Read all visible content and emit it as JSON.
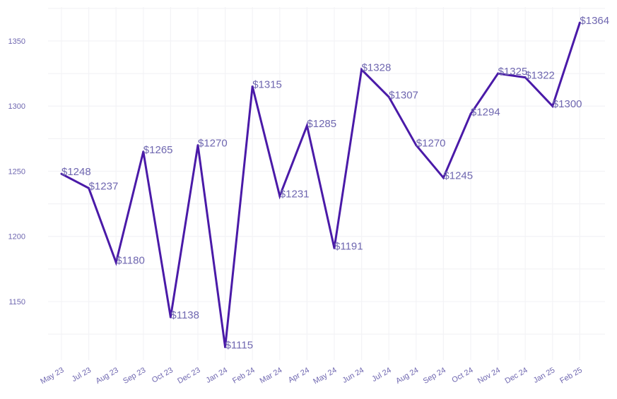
{
  "chart_data": {
    "type": "line",
    "title": "",
    "xlabel": "",
    "ylabel": "",
    "categories": [
      "May 23",
      "Jul 23",
      "Aug 23",
      "Sep 23",
      "Oct 23",
      "Dec 23",
      "Jan 24",
      "Feb 24",
      "Mar 24",
      "Apr 24",
      "May 24",
      "Jun 24",
      "Jul 24",
      "Aug 24",
      "Sep 24",
      "Oct 24",
      "Nov 24",
      "Dec 24",
      "Jan 25",
      "Feb 25"
    ],
    "values": [
      1248,
      1237,
      1180,
      1265,
      1138,
      1270,
      1115,
      1315,
      1231,
      1285,
      1191,
      1328,
      1307,
      1270,
      1245,
      1294,
      1325,
      1322,
      1300,
      1364
    ],
    "data_labels": [
      "$1248",
      "$1237",
      "$1180",
      "$1265",
      "$1138",
      "$1270",
      "$1115",
      "$1315",
      "$1231",
      "$1285",
      "$1191",
      "$1328",
      "$1307",
      "$1270",
      "$1245",
      "$1294",
      "$1325",
      "$1322",
      "$1300",
      "$1364"
    ],
    "y_ticks": [
      1150,
      1200,
      1250,
      1300,
      1350
    ],
    "ylim": [
      1105,
      1376
    ],
    "grid": true,
    "colors": {
      "line": "#4a1aa8",
      "label": "#6f67b0",
      "tick": "#6f67b0",
      "grid": "#f3f3f6"
    }
  }
}
